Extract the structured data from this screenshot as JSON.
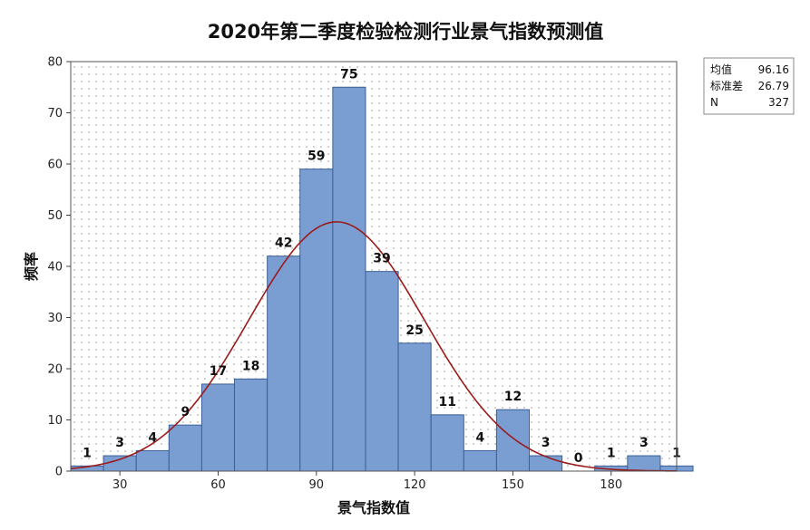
{
  "chart_data": {
    "type": "bar",
    "title": "2020年第二季度检验检测行业景气指数预测值",
    "xlabel": "景气指数值",
    "ylabel": "频率",
    "xlim": [
      15,
      200
    ],
    "ylim": [
      0,
      80
    ],
    "xticks": [
      30,
      60,
      90,
      120,
      150,
      180
    ],
    "yticks": [
      0,
      10,
      20,
      30,
      40,
      50,
      60,
      70,
      80
    ],
    "bin_width": 10,
    "bins": [
      {
        "start": 15,
        "value": 1
      },
      {
        "start": 25,
        "value": 3
      },
      {
        "start": 35,
        "value": 4
      },
      {
        "start": 45,
        "value": 9
      },
      {
        "start": 55,
        "value": 17
      },
      {
        "start": 65,
        "value": 18
      },
      {
        "start": 75,
        "value": 42
      },
      {
        "start": 85,
        "value": 59
      },
      {
        "start": 95,
        "value": 75
      },
      {
        "start": 105,
        "value": 39
      },
      {
        "start": 115,
        "value": 25
      },
      {
        "start": 125,
        "value": 11
      },
      {
        "start": 135,
        "value": 4
      },
      {
        "start": 145,
        "value": 12
      },
      {
        "start": 155,
        "value": 3
      },
      {
        "start": 165,
        "value": 0
      },
      {
        "start": 175,
        "value": 1
      },
      {
        "start": 185,
        "value": 3
      },
      {
        "start": 195,
        "value": 1
      }
    ],
    "grid": "dotted",
    "legend_position": "top-right",
    "bar_color": "#7b9ed2",
    "curve_color": "#9b1b1b",
    "stats": {
      "mean_label": "均值",
      "mean": "96.16",
      "std_label": "标准差",
      "std": "26.79",
      "n_label": "N",
      "n": "327"
    }
  }
}
